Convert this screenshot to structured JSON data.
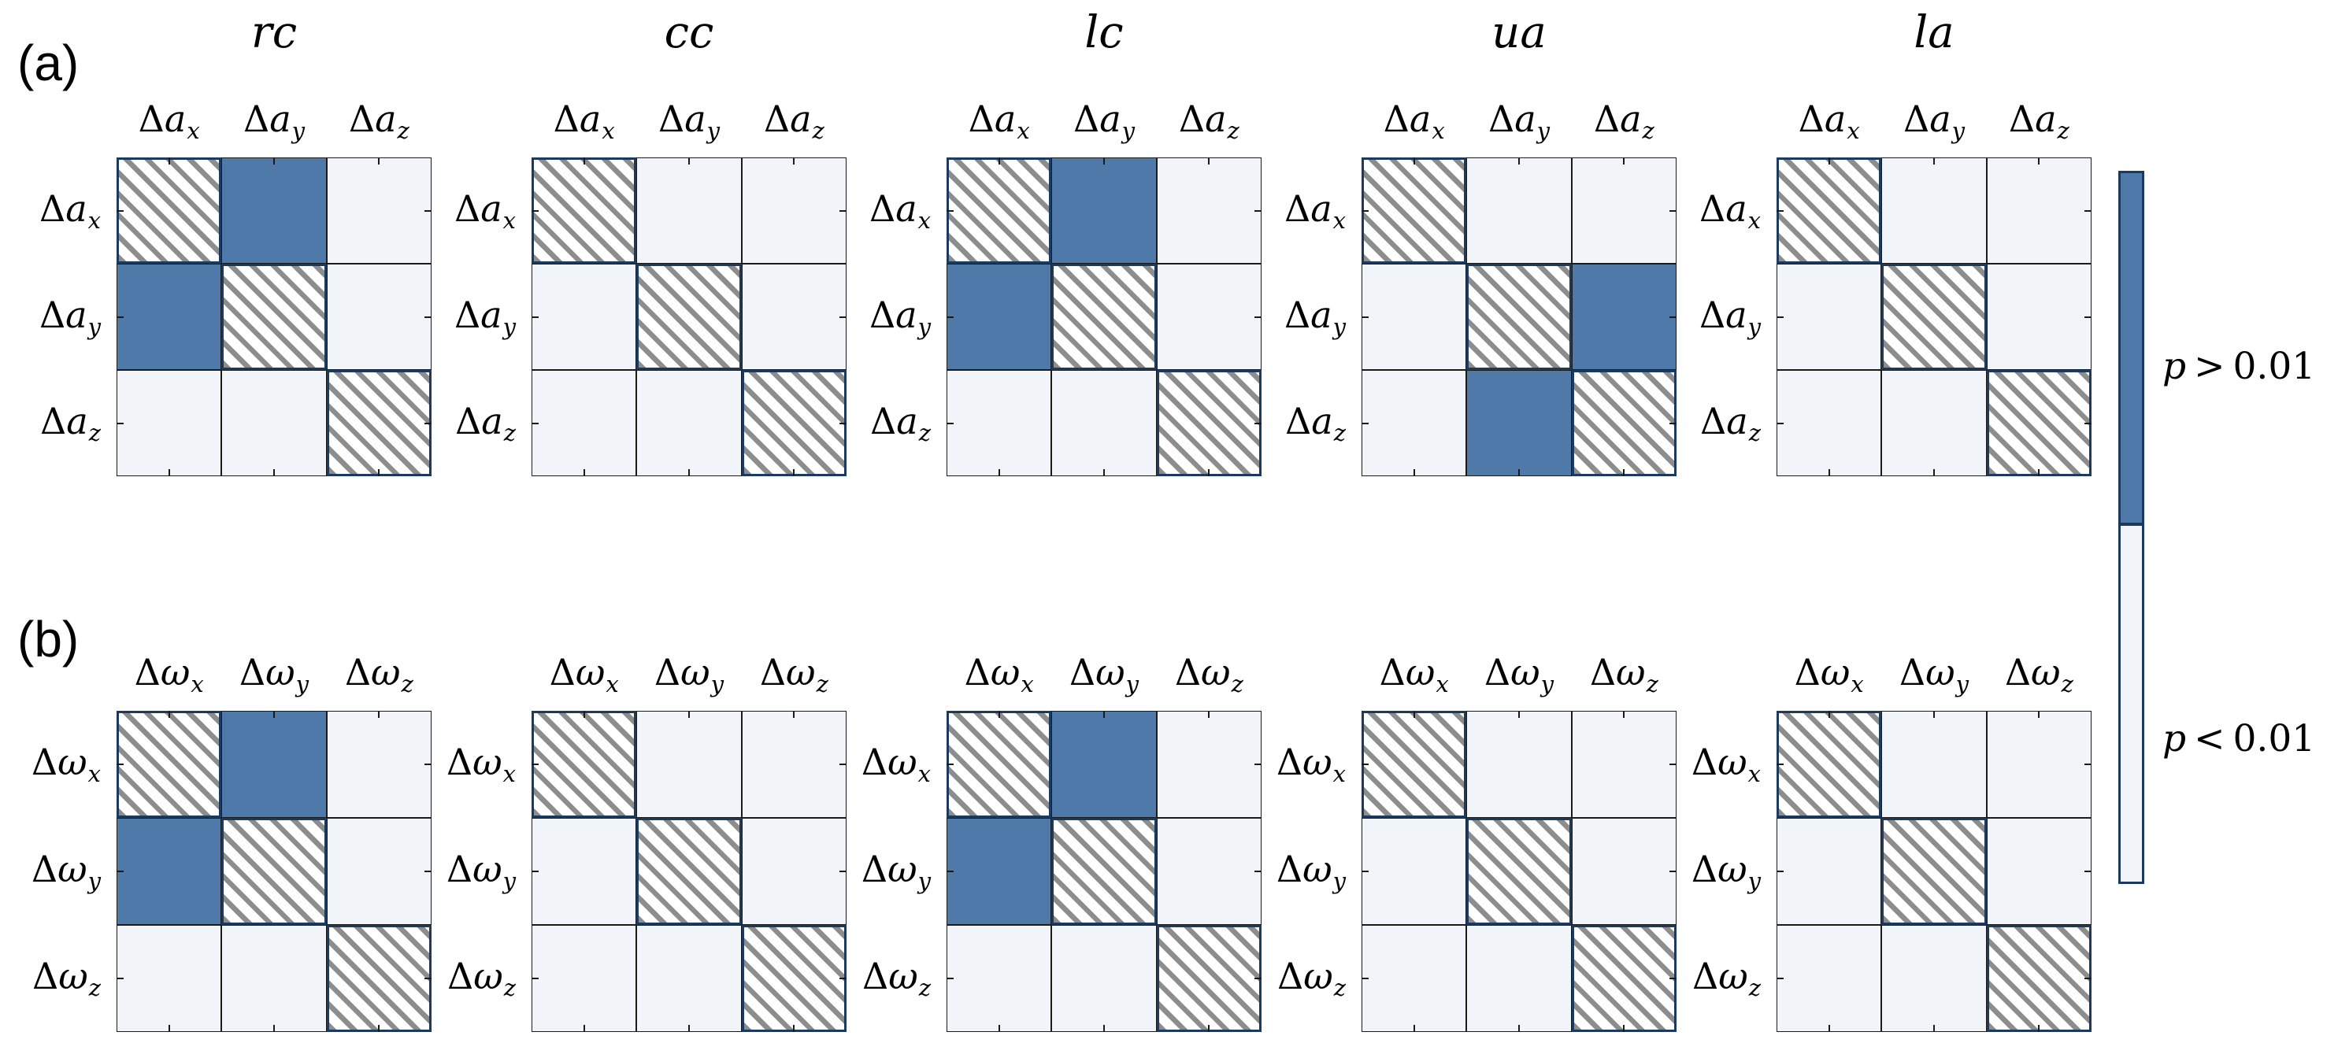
{
  "chart_data": {
    "type": "heatmap",
    "description": "Pairwise statistical-significance matrices; diagonal cells hatched (self-pair), cell value p>0.01 shown dark blue, p<0.01 shown pale",
    "conditions": [
      "rc",
      "cc",
      "lc",
      "ua",
      "la"
    ],
    "panels": [
      {
        "id": "a",
        "label": "(a)",
        "var_prefix": "Δ",
        "var_base": "a",
        "axes": [
          "x",
          "y",
          "z"
        ],
        "show_titles": true,
        "matrices": [
          {
            "title": "rc",
            "cells": [
              [
                "self",
                "p>0.01",
                "p<0.01"
              ],
              [
                "p>0.01",
                "self",
                "p<0.01"
              ],
              [
                "p<0.01",
                "p<0.01",
                "self"
              ]
            ]
          },
          {
            "title": "cc",
            "cells": [
              [
                "self",
                "p<0.01",
                "p<0.01"
              ],
              [
                "p<0.01",
                "self",
                "p<0.01"
              ],
              [
                "p<0.01",
                "p<0.01",
                "self"
              ]
            ]
          },
          {
            "title": "lc",
            "cells": [
              [
                "self",
                "p>0.01",
                "p<0.01"
              ],
              [
                "p>0.01",
                "self",
                "p<0.01"
              ],
              [
                "p<0.01",
                "p<0.01",
                "self"
              ]
            ]
          },
          {
            "title": "ua",
            "cells": [
              [
                "self",
                "p<0.01",
                "p<0.01"
              ],
              [
                "p<0.01",
                "self",
                "p>0.01"
              ],
              [
                "p<0.01",
                "p>0.01",
                "self"
              ]
            ]
          },
          {
            "title": "la",
            "cells": [
              [
                "self",
                "p<0.01",
                "p<0.01"
              ],
              [
                "p<0.01",
                "self",
                "p<0.01"
              ],
              [
                "p<0.01",
                "p<0.01",
                "self"
              ]
            ]
          }
        ]
      },
      {
        "id": "b",
        "label": "(b)",
        "var_prefix": "Δ",
        "var_base": "ω",
        "axes": [
          "x",
          "y",
          "z"
        ],
        "show_titles": false,
        "matrices": [
          {
            "title": "rc",
            "cells": [
              [
                "self",
                "p>0.01",
                "p<0.01"
              ],
              [
                "p>0.01",
                "self",
                "p<0.01"
              ],
              [
                "p<0.01",
                "p<0.01",
                "self"
              ]
            ]
          },
          {
            "title": "cc",
            "cells": [
              [
                "self",
                "p<0.01",
                "p<0.01"
              ],
              [
                "p<0.01",
                "self",
                "p<0.01"
              ],
              [
                "p<0.01",
                "p<0.01",
                "self"
              ]
            ]
          },
          {
            "title": "lc",
            "cells": [
              [
                "self",
                "p>0.01",
                "p<0.01"
              ],
              [
                "p>0.01",
                "self",
                "p<0.01"
              ],
              [
                "p<0.01",
                "p<0.01",
                "self"
              ]
            ]
          },
          {
            "title": "ua",
            "cells": [
              [
                "self",
                "p<0.01",
                "p<0.01"
              ],
              [
                "p<0.01",
                "self",
                "p<0.01"
              ],
              [
                "p<0.01",
                "p<0.01",
                "self"
              ]
            ]
          },
          {
            "title": "la",
            "cells": [
              [
                "self",
                "p<0.01",
                "p<0.01"
              ],
              [
                "p<0.01",
                "self",
                "p<0.01"
              ],
              [
                "p<0.01",
                "p<0.01",
                "self"
              ]
            ]
          }
        ]
      }
    ],
    "legend": {
      "above": {
        "lhs": "p",
        "op": ">",
        "rhs": "0.01",
        "color": "#4e79a8"
      },
      "below": {
        "lhs": "p",
        "op": "<",
        "rhs": "0.01",
        "color": "#f1f5fa"
      }
    },
    "style": {
      "hatch_color": "#8d8d8d",
      "box_border_color": "#1c3a5e",
      "grid_color": "#1b1b1b"
    }
  }
}
